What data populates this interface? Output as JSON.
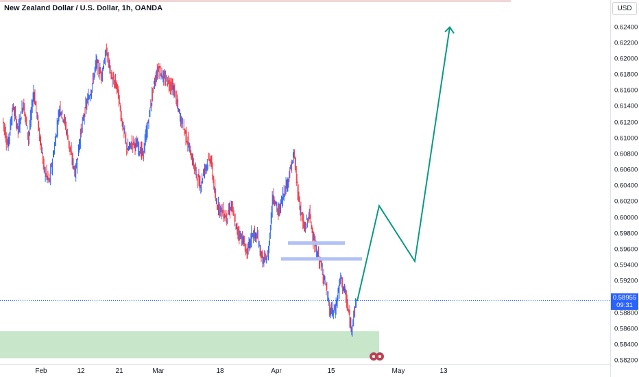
{
  "header": {
    "symbol_title": "New Zealand Dollar / U.S. Dollar, 1h, OANDA"
  },
  "currency_label": "USD",
  "price_tag": {
    "price": "0.58955",
    "countdown": "09:31",
    "color": "#2962ff"
  },
  "colors": {
    "up": "#2962ff",
    "down": "#f23645",
    "arrow": "#089981",
    "demand_zone": "#c8e6c9",
    "level_lines": "#b2c1f5"
  },
  "chart_data": {
    "type": "line",
    "ylim": [
      0.582,
      0.625
    ],
    "y_ticks": [
      "0.62400",
      "0.62200",
      "0.62000",
      "0.61800",
      "0.61600",
      "0.61400",
      "0.61200",
      "0.61000",
      "0.60800",
      "0.60600",
      "0.60400",
      "0.60200",
      "0.60000",
      "0.59800",
      "0.59600",
      "0.59400",
      "0.59200",
      "0.59000",
      "0.58800",
      "0.58600",
      "0.58400",
      "0.58200"
    ],
    "x_ticks": [
      "Feb",
      "12",
      "21",
      "Mar",
      "18",
      "Apr",
      "15",
      "May",
      "13"
    ],
    "series": [
      {
        "values": [
          0.6125,
          0.609,
          0.614,
          0.611,
          0.6145,
          0.61,
          0.616,
          0.611,
          0.606,
          0.6045,
          0.609,
          0.614,
          0.612,
          0.6085,
          0.6055,
          0.6105,
          0.614,
          0.616,
          0.6195,
          0.618,
          0.621,
          0.6175,
          0.6165,
          0.612,
          0.6085,
          0.6095,
          0.609,
          0.608,
          0.612,
          0.6165,
          0.619,
          0.6175,
          0.617,
          0.616,
          0.613,
          0.611,
          0.6085,
          0.606,
          0.604,
          0.6065,
          0.6075,
          0.602,
          0.601,
          0.6,
          0.6015,
          0.5985,
          0.5975,
          0.5955,
          0.598,
          0.5975,
          0.5945,
          0.595,
          0.603,
          0.6005,
          0.603,
          0.605,
          0.608,
          0.602,
          0.5985,
          0.6005,
          0.5965,
          0.5945,
          0.592,
          0.588,
          0.5885,
          0.5925,
          0.59,
          0.586,
          0.5895
        ]
      }
    ],
    "projection_path": [
      0.5895,
      0.6015,
      0.5945,
      0.624
    ],
    "levels": [
      0.5968,
      0.5948
    ],
    "demand_zone": [
      0.5823,
      0.5857
    ]
  }
}
